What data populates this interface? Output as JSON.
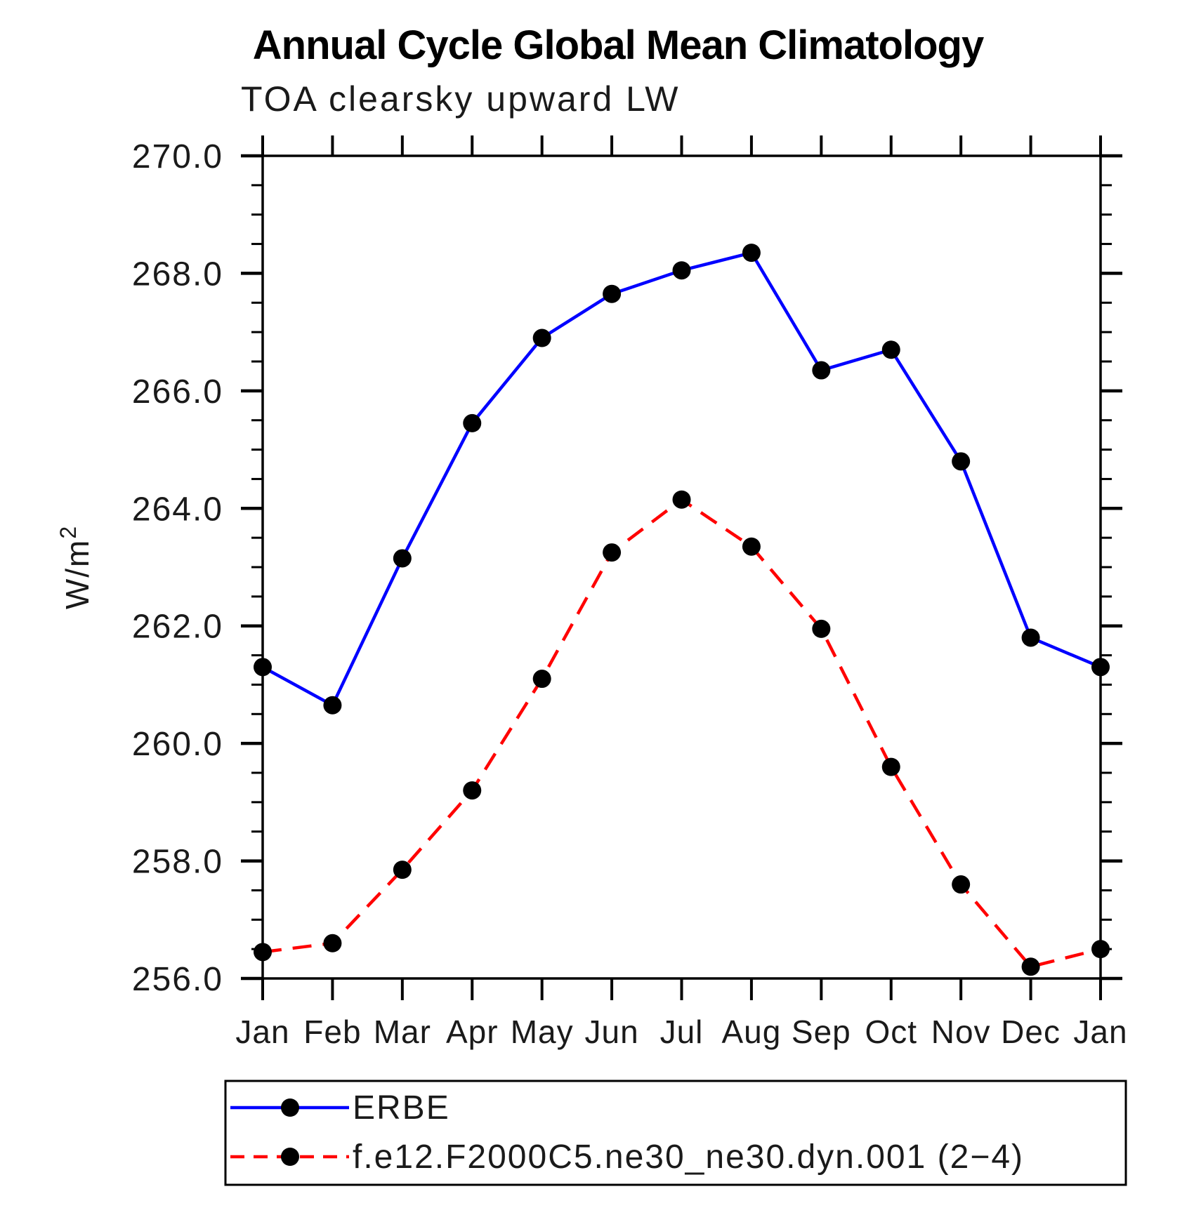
{
  "title": "Annual Cycle Global Mean Climatology",
  "subtitle": "TOA clearsky upward LW",
  "chart_data": {
    "type": "line",
    "categories": [
      "Jan",
      "Feb",
      "Mar",
      "Apr",
      "May",
      "Jun",
      "Jul",
      "Aug",
      "Sep",
      "Oct",
      "Nov",
      "Dec",
      "Jan"
    ],
    "xlabel": "",
    "ylabel": "W/m²",
    "ylim": [
      256.0,
      270.0
    ],
    "ytick_interval": 2.0,
    "yminor_tick_interval": 0.5,
    "ytick_labels": [
      "256.0",
      "258.0",
      "260.0",
      "262.0",
      "264.0",
      "266.0",
      "268.0",
      "270.0"
    ],
    "grid": false,
    "legend_position": "bottom-left-box",
    "series": [
      {
        "name": "ERBE",
        "line_style": "solid",
        "line_color": "#0000ff",
        "marker": "filled-circle",
        "marker_color": "#000000",
        "values": [
          261.3,
          260.65,
          263.15,
          265.45,
          266.9,
          267.65,
          268.05,
          268.35,
          266.35,
          266.7,
          264.8,
          261.8,
          261.3
        ]
      },
      {
        "name": "f.e12.F2000C5.ne30_ne30.dyn.001 (2−4)",
        "line_style": "dashed",
        "line_color": "#ff0000",
        "marker": "filled-circle",
        "marker_color": "#000000",
        "values": [
          256.45,
          256.6,
          257.85,
          259.2,
          261.1,
          263.25,
          264.15,
          263.35,
          261.95,
          259.6,
          257.6,
          256.2,
          256.5
        ]
      }
    ]
  }
}
